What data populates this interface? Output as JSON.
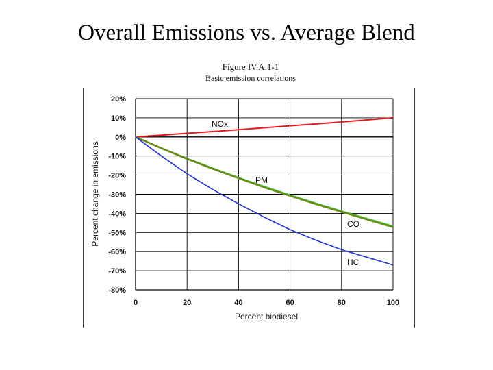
{
  "slide": {
    "title": "Overall Emissions vs. Average Blend"
  },
  "figure": {
    "title_line1": "Figure IV.A.1-1",
    "title_line2": "Basic emission correlations"
  },
  "colors": {
    "nox": "#e31a1c",
    "pm": "#6e8a1a",
    "co": "#33cc33",
    "hc": "#2233cc",
    "grid": "#000000",
    "background": "#ffffff"
  },
  "chart_data": {
    "type": "line",
    "title": "Basic emission correlations",
    "xlabel": "Percent biodiesel",
    "ylabel": "Percent change in emissions",
    "xlim": [
      0,
      100
    ],
    "ylim": [
      -80,
      20
    ],
    "grid": true,
    "x_ticks": [
      0,
      20,
      40,
      60,
      80,
      100
    ],
    "x_tick_labels": [
      "0",
      "20",
      "40",
      "60",
      "80",
      "100"
    ],
    "y_ticks": [
      20,
      10,
      0,
      -10,
      -20,
      -30,
      -40,
      -50,
      -60,
      -70,
      -80
    ],
    "y_tick_labels": [
      "20%",
      "10%",
      "0%",
      "-10%",
      "-20%",
      "-30%",
      "-40%",
      "-50%",
      "-60%",
      "-70%",
      "-80%"
    ],
    "x": [
      0,
      10,
      20,
      30,
      40,
      50,
      60,
      70,
      80,
      90,
      100
    ],
    "series": [
      {
        "name": "NOx",
        "color": "#e31a1c",
        "values": [
          0,
          0.9,
          1.9,
          2.8,
          3.8,
          4.8,
          5.8,
          6.8,
          7.8,
          8.9,
          10
        ]
      },
      {
        "name": "CO",
        "color": "#33cc33",
        "values": [
          0,
          -5.8,
          -11.3,
          -16.4,
          -21.3,
          -26.0,
          -30.4,
          -34.7,
          -38.8,
          -42.8,
          -46.7
        ]
      },
      {
        "name": "PM",
        "color": "#6e8a1a",
        "values": [
          0,
          -5.9,
          -11.5,
          -16.7,
          -21.6,
          -26.4,
          -30.8,
          -35.1,
          -39.2,
          -43.2,
          -47.2
        ]
      },
      {
        "name": "HC",
        "color": "#2233cc",
        "values": [
          0,
          -10.0,
          -19.3,
          -27.5,
          -35.0,
          -42.0,
          -48.5,
          -54.0,
          -59.0,
          -63.0,
          -67.0
        ]
      }
    ],
    "annotations": [
      {
        "text": "NOx",
        "series": "NOx"
      },
      {
        "text": "PM",
        "series": "PM"
      },
      {
        "text": "CO",
        "series": "CO"
      },
      {
        "text": "HC",
        "series": "HC"
      }
    ]
  }
}
